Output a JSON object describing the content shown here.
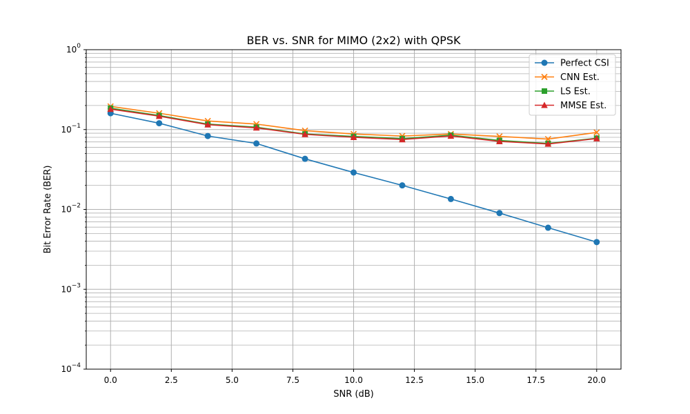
{
  "chart_data": {
    "type": "line",
    "title": "BER vs. SNR for MIMO (2x2) with QPSK",
    "xlabel": "SNR (dB)",
    "ylabel": "Bit Error Rate (BER)",
    "xlim": [
      -1,
      21
    ],
    "ylim": [
      0.0001,
      1
    ],
    "yscale": "log",
    "grid": true,
    "legend_position": "top-right",
    "x_ticks": [
      0.0,
      2.5,
      5.0,
      7.5,
      10.0,
      12.5,
      15.0,
      17.5,
      20.0
    ],
    "x_tick_labels": [
      "0.0",
      "2.5",
      "5.0",
      "7.5",
      "10.0",
      "12.5",
      "15.0",
      "17.5",
      "20.0"
    ],
    "y_ticks": [
      {
        "base": "10",
        "exp": "0",
        "value": 1
      },
      {
        "base": "10",
        "exp": "−1",
        "value": 0.1
      },
      {
        "base": "10",
        "exp": "−2",
        "value": 0.01
      },
      {
        "base": "10",
        "exp": "−3",
        "value": 0.001
      },
      {
        "base": "10",
        "exp": "−4",
        "value": 0.0001
      }
    ],
    "x": [
      0,
      2,
      4,
      6,
      8,
      10,
      12,
      14,
      16,
      18,
      20
    ],
    "series": [
      {
        "name": "Perfect CSI",
        "color": "#1f77b4",
        "marker": "circle",
        "values": [
          0.16,
          0.12,
          0.083,
          0.067,
          0.043,
          0.029,
          0.02,
          0.0135,
          0.009,
          0.0059,
          0.0039
        ]
      },
      {
        "name": "CNN Est.",
        "color": "#ff7f0e",
        "marker": "x",
        "values": [
          0.195,
          0.16,
          0.128,
          0.117,
          0.097,
          0.088,
          0.083,
          0.088,
          0.082,
          0.076,
          0.092
        ]
      },
      {
        "name": "LS Est.",
        "color": "#2ca02c",
        "marker": "square",
        "values": [
          0.185,
          0.15,
          0.117,
          0.107,
          0.088,
          0.082,
          0.077,
          0.085,
          0.073,
          0.067,
          0.078
        ]
      },
      {
        "name": "MMSE Est.",
        "color": "#d62728",
        "marker": "triangle",
        "values": [
          0.18,
          0.147,
          0.115,
          0.105,
          0.087,
          0.08,
          0.075,
          0.083,
          0.071,
          0.066,
          0.077
        ]
      }
    ]
  }
}
